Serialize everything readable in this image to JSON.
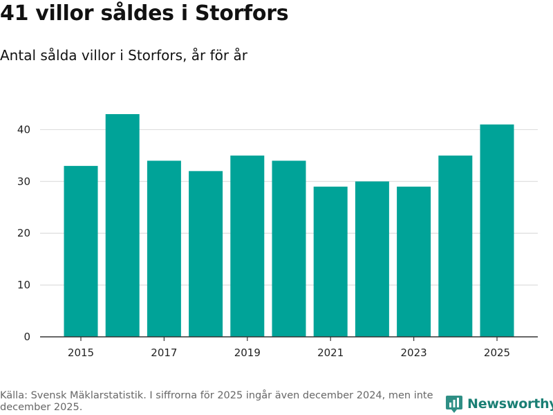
{
  "title": "41 villor såldes i Storfors",
  "subtitle": "Antal sålda villor i Storfors, år för år",
  "footer": "Källa: Svensk Mäklarstatistik. I siffrorna för 2025 ingår även december 2024, men inte december 2025.",
  "brand": "Newsworthy",
  "colors": {
    "bar": "#00a398",
    "grid": "#dddddd",
    "axis": "#333333",
    "brand": "#1a7f74"
  },
  "chart_data": {
    "type": "bar",
    "title": "41 villor såldes i Storfors",
    "subtitle": "Antal sålda villor i Storfors, år för år",
    "xlabel": "",
    "ylabel": "",
    "categories": [
      "2015",
      "2016",
      "2017",
      "2018",
      "2019",
      "2020",
      "2021",
      "2022",
      "2023",
      "2024",
      "2025"
    ],
    "values": [
      33,
      43,
      34,
      32,
      35,
      34,
      29,
      30,
      29,
      35,
      41
    ],
    "x_tick_labels": [
      "2015",
      "2017",
      "2019",
      "2021",
      "2023",
      "2025"
    ],
    "y_ticks": [
      0,
      10,
      20,
      30,
      40
    ],
    "ylim": [
      0,
      45
    ],
    "grid": true
  }
}
